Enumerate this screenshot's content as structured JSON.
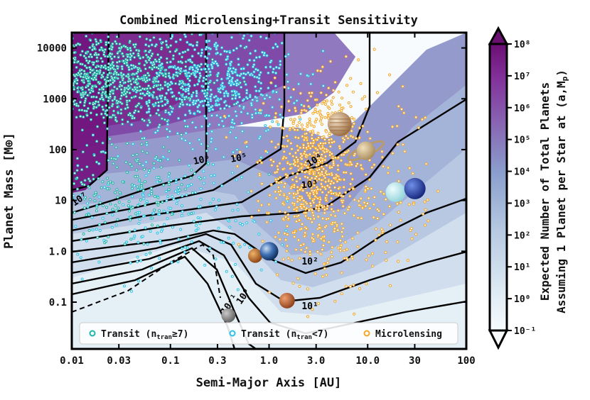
{
  "chart_data": {
    "type": "scatter",
    "title": "Combined Microlensing+Transit Sensitivity",
    "xlabel": "Semi-Major Axis [AU]",
    "ylabel": "Planet Mass [M⊕]",
    "xscale": "log",
    "yscale": "log",
    "xlim": [
      0.01,
      100
    ],
    "ylim": [
      0.012,
      20000
    ],
    "xticks": [
      {
        "value": 0.01,
        "label": "0.01"
      },
      {
        "value": 0.03,
        "label": "0.03"
      },
      {
        "value": 0.1,
        "label": "0.1"
      },
      {
        "value": 0.3,
        "label": "0.3"
      },
      {
        "value": 1.0,
        "label": "1.0"
      },
      {
        "value": 3.0,
        "label": "3.0"
      },
      {
        "value": 10.0,
        "label": "10.0"
      },
      {
        "value": 30,
        "label": "30"
      },
      {
        "value": 100,
        "label": "100"
      }
    ],
    "yticks": [
      {
        "value": 0.1,
        "label": "0.1"
      },
      {
        "value": 1.0,
        "label": "1.0"
      },
      {
        "value": 10,
        "label": "10"
      },
      {
        "value": 100,
        "label": "100"
      },
      {
        "value": 1000,
        "label": "1000"
      },
      {
        "value": 10000,
        "label": "10000"
      }
    ],
    "contour_labels": [
      {
        "text": "10⁷",
        "a": 0.0125,
        "m": 9.5,
        "angle": -35
      },
      {
        "text": "10⁶",
        "a": 0.21,
        "m": 55,
        "angle": -12
      },
      {
        "text": "10⁵",
        "a": 0.5,
        "m": 60,
        "angle": -10
      },
      {
        "text": "10⁴",
        "a": 3.0,
        "m": 55,
        "angle": -32
      },
      {
        "text": "10³",
        "a": 2.6,
        "m": 18,
        "angle": -6
      },
      {
        "text": "10²",
        "a": 2.6,
        "m": 0.55,
        "angle": 0
      },
      {
        "text": "10¹",
        "a": 2.6,
        "m": 0.073,
        "angle": 0
      },
      {
        "text": "10⁰",
        "a": 0.58,
        "m": 0.12,
        "angle": -55
      },
      {
        "text": "10⁻¹",
        "a": 0.42,
        "m": 0.085,
        "angle": -55
      }
    ],
    "planets": [
      {
        "name": "Mercury",
        "a": 0.387,
        "m": 0.055
      },
      {
        "name": "Venus",
        "a": 0.723,
        "m": 0.815
      },
      {
        "name": "Earth",
        "a": 1.0,
        "m": 1.0
      },
      {
        "name": "Mars",
        "a": 1.52,
        "m": 0.107
      },
      {
        "name": "Jupiter",
        "a": 5.2,
        "m": 318
      },
      {
        "name": "Saturn",
        "a": 9.58,
        "m": 95
      },
      {
        "name": "Uranus",
        "a": 19.2,
        "m": 14.5
      },
      {
        "name": "Neptune",
        "a": 30.1,
        "m": 17.1
      }
    ],
    "legend": {
      "position": "bottom",
      "entries": [
        {
          "label": "Transit (n",
          "sub": "tran",
          "tail": "≥7)",
          "color": "#1fb5a8"
        },
        {
          "label": "Transit (n",
          "sub": "tran",
          "tail": "<7)",
          "color": "#28c4e6"
        },
        {
          "label": "Microlensing",
          "sub": "",
          "tail": "",
          "color": "#f5a623"
        }
      ]
    },
    "colorbar": {
      "label_line1": "Expected Number of Total Planets",
      "label_line2": "Assuming 1 Planet per Star at (a,M",
      "label_sub": "p",
      "label_tail": ")",
      "scale": "log",
      "ticks": [
        {
          "exp": -1,
          "label": "10⁻¹"
        },
        {
          "exp": 0,
          "label": "10⁰"
        },
        {
          "exp": 1,
          "label": "10¹"
        },
        {
          "exp": 2,
          "label": "10²"
        },
        {
          "exp": 3,
          "label": "10³"
        },
        {
          "exp": 4,
          "label": "10⁴"
        },
        {
          "exp": 5,
          "label": "10⁵"
        },
        {
          "exp": 6,
          "label": "10⁶"
        },
        {
          "exp": 7,
          "label": "10⁷"
        },
        {
          "exp": 8,
          "label": "10⁸"
        }
      ]
    }
  },
  "colors": {
    "transit_bright": "#1fb5a8",
    "transit_faint": "#28c4e6",
    "microlensing": "#f5a623",
    "contour": "#000000",
    "cmap_low": "#f7fbfd",
    "cmap_mid": "#8a9fcd",
    "cmap_high": "#75157c"
  }
}
